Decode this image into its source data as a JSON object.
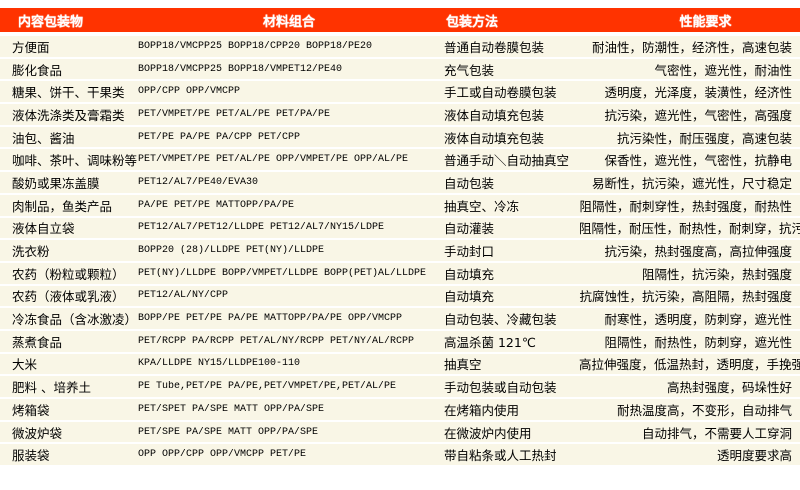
{
  "header": {
    "col1": "内容包装物",
    "col2": "材料组合",
    "col3": "包装方法",
    "col4": "性能要求"
  },
  "colors": {
    "header_bg": "#ff3300",
    "row_bg": "#f9f6e6"
  },
  "rows": [
    {
      "item": "方便面",
      "material": "BOPP18/VMCPP25  BOPP18/CPP20  BOPP18/PE20",
      "method": "普通自动卷膜包装",
      "perf": "耐油性，防潮性，经济性，高速包装"
    },
    {
      "item": "膨化食品",
      "material": "BOPP18/VMCPP25  BOPP18/VMPET12/PE40",
      "method": "充气包装",
      "perf": "气密性，遮光性，耐油性"
    },
    {
      "item": "糖果、饼干、干果类",
      "material": "OPP/CPP OPP/VMCPP",
      "method": "手工或自动卷膜包装",
      "perf": "透明度，光泽度，装潢性，经济性"
    },
    {
      "item": "液体洗涤类及膏霜类",
      "material": "PET/VMPET/PE PET/AL/PE  PET/PA/PE",
      "method": "液体自动填充包装",
      "perf": "抗污染，遮光性，气密性，高强度"
    },
    {
      "item": "油包、酱油",
      "material": "PET/PE  PA/PE PA/CPP PET/CPP",
      "method": "液体自动填充包装",
      "perf": "抗污染性，耐压强度，高速包装"
    },
    {
      "item": "咖啡、茶叶、调味粉等",
      "material": "PET/VMPET/PE PET/AL/PE OPP/VMPET/PE OPP/AL/PE",
      "method": "普通手动＼自动抽真空",
      "perf": "保香性，遮光性，气密性，抗静电"
    },
    {
      "item": "酸奶或果冻盖膜",
      "material": "PET12/AL7/PE40/EVA30",
      "method": "自动包装",
      "perf": "易断性，抗污染，遮光性，尺寸稳定"
    },
    {
      "item": "肉制品，鱼类产品",
      "material": "PA/PE PET/PE MATTOPP/PA/PE",
      "method": "抽真空、冷冻",
      "perf": "阻隔性，耐刺穿性，热封强度，耐热性"
    },
    {
      "item": "液体自立袋",
      "material": "PET12/AL7/PET12/LLDPE PET12/AL7/NY15/LDPE",
      "method": "自动灌装",
      "perf": "阻隔性，耐压性，耐热性，耐刺穿，抗污染"
    },
    {
      "item": "洗衣粉",
      "material": "BOPP20 (28)/LLDPE PET(NY)/LLDPE",
      "method": "手动封口",
      "perf": "抗污染，热封强度高，高拉伸强度"
    },
    {
      "item": "农药（粉粒或颗粒）",
      "material": "PET(NY)/LLDPE BOPP/VMPET/LLDPE BOPP(PET)AL/LLDPE",
      "method": "自动填充",
      "perf": "阻隔性，抗污染，热封强度"
    },
    {
      "item": "农药（液体或乳液）",
      "material": "PET12/AL/NY/CPP",
      "method": "自动填充",
      "perf": "抗腐蚀性，抗污染，高阻隔，热封强度"
    },
    {
      "item": "冷冻食品（含冰激凌）",
      "material": "BOPP/PE PET/PE PA/PE MATTOPP/PA/PE OPP/VMCPP",
      "method": "自动包装、冷藏包装",
      "perf": "耐寒性，透明度，防刺穿，遮光性"
    },
    {
      "item": "蒸煮食品",
      "material": "PET/RCPP PA/RCPP PET/AL/NY/RCPP PET/NY/AL/RCPP",
      "method": "高温杀菌 121℃",
      "perf": "阻隔性，耐热性，防刺穿，遮光性"
    },
    {
      "item": "大米",
      "material": "KPA/LLDPE NY15/LLDPE100-110",
      "method": "抽真空",
      "perf": "高拉伸强度，低温热封，透明度，手挽强度高"
    },
    {
      "item": "肥料 、培养土",
      "material": "PE Tube,PET/PE  PA/PE,PET/VMPET/PE,PET/AL/PE",
      "method": "手动包装或自动包装",
      "perf": "高热封强度，码垛性好"
    },
    {
      "item": "烤箱袋",
      "material": "PET/SPET PA/SPE MATT OPP/PA/SPE",
      "method": "在烤箱内使用",
      "perf": "耐热温度高，不变形，自动排气"
    },
    {
      "item": "微波炉袋",
      "material": "PET/SPE PA/SPE MATT OPP/PA/SPE",
      "method": "在微波炉内使用",
      "perf": "自动排气，不需要人工穿洞"
    },
    {
      "item": "服装袋",
      "material": "OPP  OPP/CPP OPP/VMCPP PET/PE",
      "method": "带自粘条或人工热封",
      "perf": "透明度要求高"
    }
  ]
}
